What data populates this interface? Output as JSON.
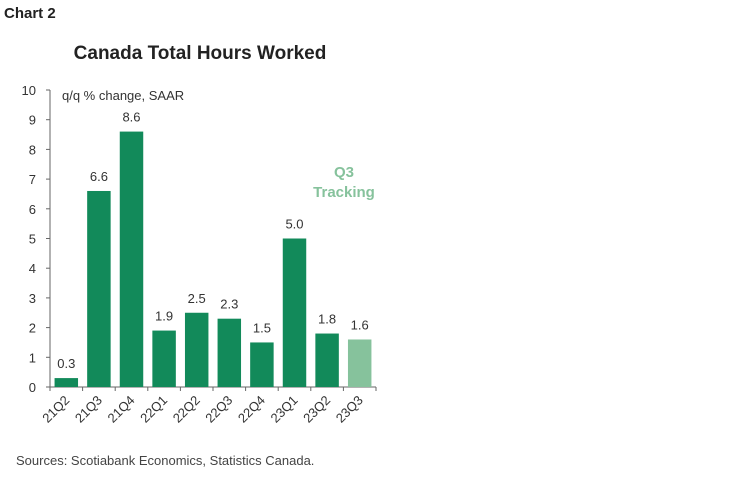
{
  "header": {
    "chart_label": "Chart 2"
  },
  "footer": {
    "source": "Sources: Scotiabank Economics, Statistics Canada."
  },
  "chart_data": {
    "type": "bar",
    "title": "Canada Total Hours Worked",
    "unit_label": "q/q % change, SAAR",
    "categories": [
      "21Q2",
      "21Q3",
      "21Q4",
      "22Q1",
      "22Q2",
      "22Q3",
      "22Q4",
      "23Q1",
      "23Q2",
      "23Q3"
    ],
    "values": [
      0.3,
      6.6,
      8.6,
      1.9,
      2.5,
      2.3,
      1.5,
      5.0,
      1.8,
      1.6
    ],
    "data_labels": [
      "0.3",
      "6.6",
      "8.6",
      "1.9",
      "2.5",
      "2.3",
      "1.5",
      "5.0",
      "1.8",
      "1.6"
    ],
    "ylim": [
      0,
      10
    ],
    "yticks": [
      0,
      1,
      2,
      3,
      4,
      5,
      6,
      7,
      8,
      9,
      10
    ],
    "grid": false,
    "colors": {
      "main": "#128a5a",
      "tracking": "#86c29c"
    },
    "tracking_index": 9,
    "annotation": {
      "lines": [
        "Q3",
        "Tracking"
      ],
      "color": "#86c29c"
    }
  }
}
